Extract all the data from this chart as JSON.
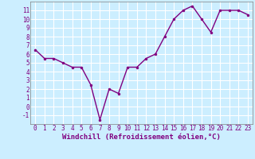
{
  "x": [
    0,
    1,
    2,
    3,
    4,
    5,
    6,
    7,
    8,
    9,
    10,
    11,
    12,
    13,
    14,
    15,
    16,
    17,
    18,
    19,
    20,
    21,
    22,
    23
  ],
  "y": [
    6.5,
    5.5,
    5.5,
    5.0,
    4.5,
    4.5,
    2.5,
    -1.5,
    2.0,
    1.5,
    4.5,
    4.5,
    5.5,
    6.0,
    8.0,
    10.0,
    11.0,
    11.5,
    10.0,
    8.5,
    11.0,
    11.0,
    11.0,
    10.5
  ],
  "line_color": "#800080",
  "marker": "o",
  "markersize": 2,
  "linewidth": 1.0,
  "xlabel": "Windchill (Refroidissement éolien,°C)",
  "background_color": "#cceeff",
  "grid_color": "#ffffff",
  "ylim": [
    -2,
    12
  ],
  "xlim": [
    -0.5,
    23.5
  ],
  "yticks": [
    -1,
    0,
    1,
    2,
    3,
    4,
    5,
    6,
    7,
    8,
    9,
    10,
    11
  ],
  "xticks": [
    0,
    1,
    2,
    3,
    4,
    5,
    6,
    7,
    8,
    9,
    10,
    11,
    12,
    13,
    14,
    15,
    16,
    17,
    18,
    19,
    20,
    21,
    22,
    23
  ],
  "tick_fontsize": 5.5,
  "xlabel_fontsize": 6.5,
  "axis_color": "#800080",
  "spine_color": "#808080"
}
